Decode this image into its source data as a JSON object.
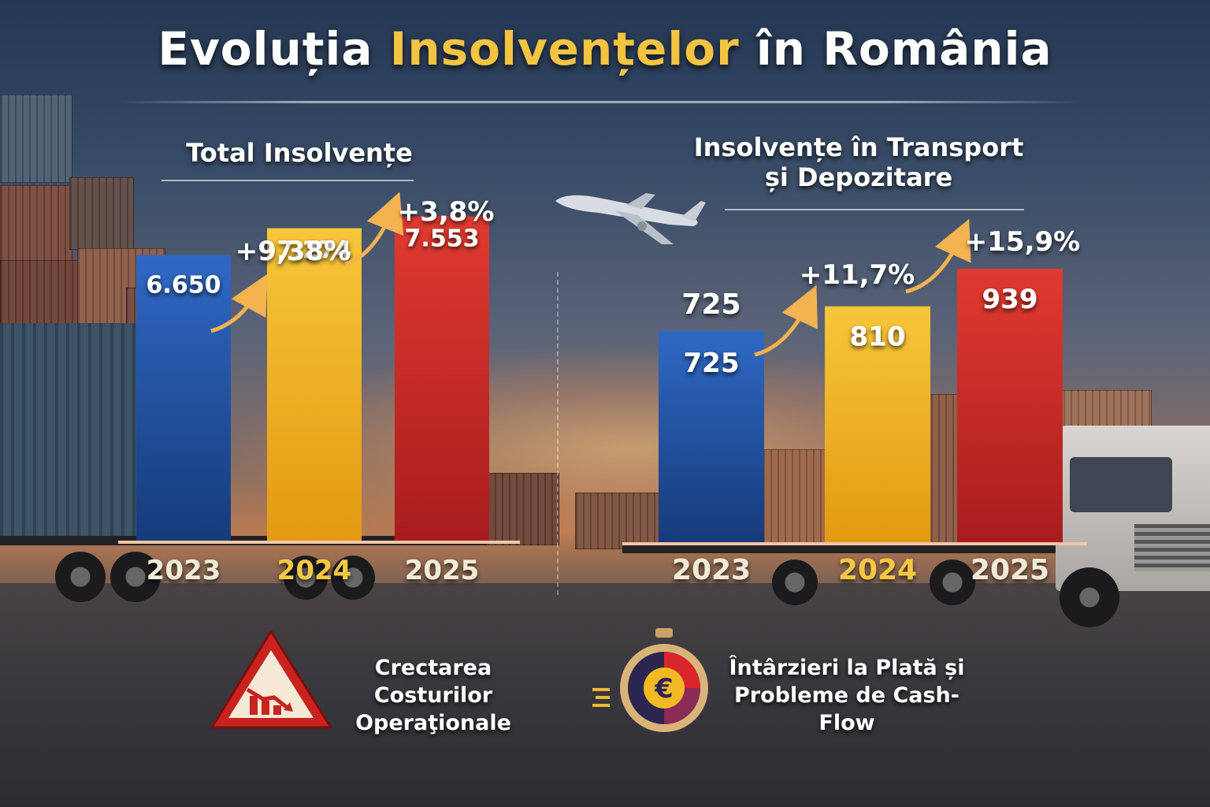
{
  "title": {
    "part1": "Evoluția ",
    "part2": "Insolvențelor",
    "part3": " în România"
  },
  "panels": {
    "left_title": "Total Insolvențe",
    "right_title_line1": "Insolvențe în Transport",
    "right_title_line2": "și Depozitare"
  },
  "chart_data": [
    {
      "type": "bar",
      "title": "Total Insolvențe",
      "categories": [
        "2023",
        "2024",
        "2025"
      ],
      "values": [
        6650,
        7274,
        7553
      ],
      "value_labels": [
        "6.650",
        "7.274",
        "7.553"
      ],
      "growth_labels": [
        "+9,38%",
        "+3,8%"
      ],
      "colors": [
        "#1f4fa0",
        "#f2b320",
        "#cc2626"
      ],
      "ylim": [
        0,
        8000
      ]
    },
    {
      "type": "bar",
      "title": "Insolvențe în Transport și Depozitare",
      "categories": [
        "2023",
        "2024",
        "2025"
      ],
      "values": [
        725,
        810,
        939
      ],
      "value_labels": [
        "725",
        "810",
        "939"
      ],
      "extra_label": "725",
      "growth_labels": [
        "+11,7%",
        "+15,9%"
      ],
      "colors": [
        "#1f4fa0",
        "#f2b320",
        "#cc2626"
      ],
      "ylim": [
        0,
        1050
      ]
    }
  ],
  "year_label_colors": [
    "#f2ead8",
    "#f6c842",
    "#f2ead8"
  ],
  "bottom": {
    "left_line1": "Crectarea Costurilor",
    "left_line2": "Operaţionale",
    "right_line1": "Întârzieri la Plată și",
    "right_line2": "Probleme de Cash-Flow",
    "warning_icon": "warning-triangle-chart-down-icon",
    "euro_icon": "euro-stopwatch-icon"
  }
}
